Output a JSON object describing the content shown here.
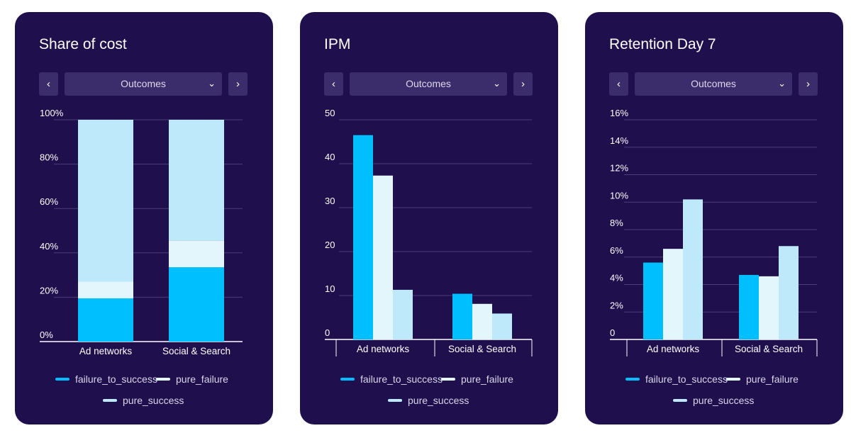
{
  "cards": [
    {
      "title": "Share of cost",
      "dropdown": "Outcomes",
      "icons": {
        "prev": "chevron-left-icon",
        "next": "chevron-right-icon",
        "dropdown": "chevron-down-icon"
      },
      "legend": [
        "failure_to_success",
        "pure_failure",
        "pure_success"
      ]
    },
    {
      "title": "IPM",
      "dropdown": "Outcomes",
      "icons": {
        "prev": "chevron-left-icon",
        "next": "chevron-right-icon",
        "dropdown": "chevron-down-icon"
      },
      "legend": [
        "failure_to_success",
        "pure_failure",
        "pure_success"
      ]
    },
    {
      "title": "Retention Day 7",
      "dropdown": "Outcomes",
      "icons": {
        "prev": "chevron-left-icon",
        "next": "chevron-right-icon",
        "dropdown": "chevron-down-icon"
      },
      "legend": [
        "failure_to_success",
        "pure_failure",
        "pure_success"
      ]
    }
  ],
  "colors": {
    "failure_to_success": "#00bfff",
    "pure_failure": "#e2f6fc",
    "pure_success": "#bde9fa",
    "card_bg": "#1f0f4d",
    "button_bg": "#3b2d6b"
  },
  "chart_data": [
    {
      "type": "bar",
      "stacked": true,
      "title": "Share of cost",
      "categories": [
        "Ad networks",
        "Social & Search"
      ],
      "series": [
        {
          "name": "failure_to_success",
          "values": [
            19.5,
            33.5
          ]
        },
        {
          "name": "pure_failure",
          "values": [
            7.5,
            12
          ]
        },
        {
          "name": "pure_success",
          "values": [
            73,
            54.5
          ]
        }
      ],
      "ylim": [
        0,
        100
      ],
      "yticks": [
        "0%",
        "20%",
        "40%",
        "60%",
        "80%",
        "100%"
      ],
      "grid": true,
      "legend": "bottom"
    },
    {
      "type": "bar",
      "stacked": false,
      "title": "IPM",
      "categories": [
        "Ad networks",
        "Social & Search"
      ],
      "series": [
        {
          "name": "failure_to_success",
          "values": [
            46.5,
            10.4
          ]
        },
        {
          "name": "pure_failure",
          "values": [
            37.3,
            8.1
          ]
        },
        {
          "name": "pure_success",
          "values": [
            11.3,
            5.9
          ]
        }
      ],
      "ylim": [
        0,
        50
      ],
      "yticks": [
        "0",
        "10",
        "20",
        "30",
        "40",
        "50"
      ],
      "grid": true,
      "legend": "bottom"
    },
    {
      "type": "bar",
      "stacked": false,
      "title": "Retention Day 7",
      "categories": [
        "Ad networks",
        "Social & Search"
      ],
      "series": [
        {
          "name": "failure_to_success",
          "values": [
            5.6,
            4.7
          ]
        },
        {
          "name": "pure_failure",
          "values": [
            6.6,
            4.6
          ]
        },
        {
          "name": "pure_success",
          "values": [
            10.2,
            6.8
          ]
        }
      ],
      "ylim": [
        0,
        16
      ],
      "yticks": [
        "0",
        "2%",
        "4%",
        "6%",
        "8%",
        "10%",
        "12%",
        "14%",
        "16%"
      ],
      "grid": true,
      "legend": "bottom"
    }
  ]
}
